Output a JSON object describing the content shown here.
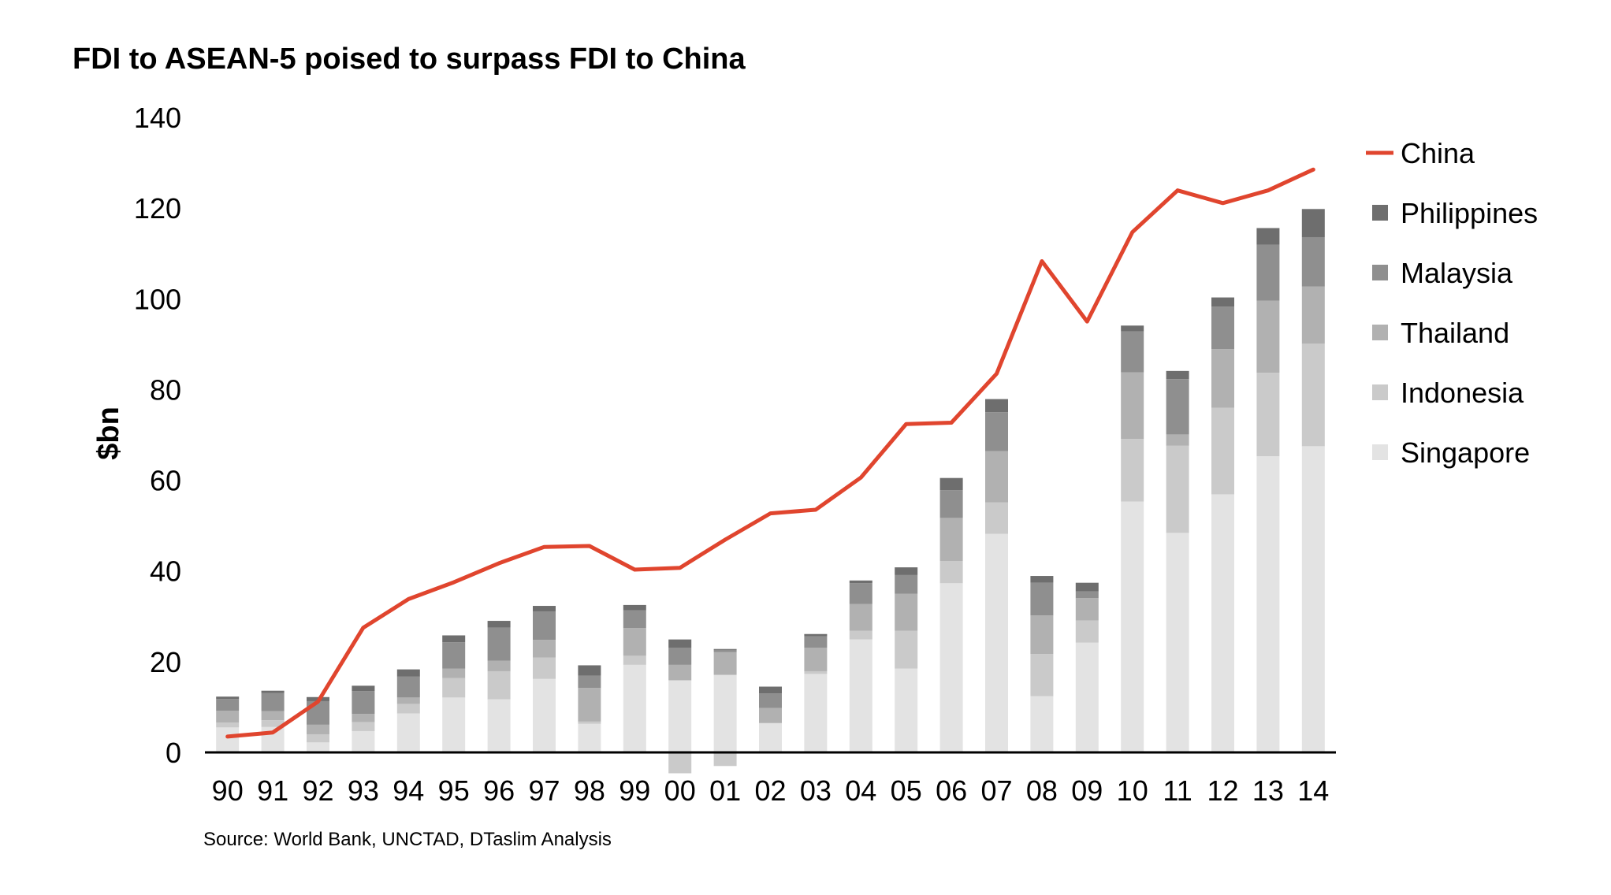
{
  "title": "FDI to ASEAN-5 poised to surpass FDI to China",
  "source": "Source: World Bank, UNCTAD, DTaslim Analysis",
  "colors": {
    "China": "#e0452e",
    "Philippines": "#6e6e6e",
    "Malaysia": "#8f8f8f",
    "Thailand": "#b1b1b1",
    "Indonesia": "#cacaca",
    "Singapore": "#e3e3e3"
  },
  "chart_data": {
    "type": "bar",
    "stacked": true,
    "title": "FDI to ASEAN-5 poised to surpass FDI to China",
    "ylabel": "$bn",
    "xlabel": "",
    "ylim": [
      0,
      140
    ],
    "yticks": [
      0,
      20,
      40,
      60,
      80,
      100,
      120,
      140
    ],
    "grid": false,
    "legend_position": "right",
    "categories": [
      "90",
      "91",
      "92",
      "93",
      "94",
      "95",
      "96",
      "97",
      "98",
      "99",
      "00",
      "01",
      "02",
      "03",
      "04",
      "05",
      "06",
      "07",
      "08",
      "09",
      "10",
      "11",
      "12",
      "13",
      "14"
    ],
    "series": [
      {
        "name": "Singapore",
        "type": "bar",
        "values": [
          5.5,
          5.6,
          2.2,
          4.7,
          8.6,
          12.1,
          11.7,
          16.2,
          6.3,
          19.3,
          15.9,
          17.1,
          6.4,
          17.3,
          24.9,
          18.5,
          37.3,
          48.2,
          12.4,
          24.2,
          55.3,
          48.4,
          56.9,
          65.3,
          67.5
        ]
      },
      {
        "name": "Indonesia",
        "type": "bar",
        "values": [
          1.1,
          1.5,
          1.8,
          2.0,
          2.1,
          4.3,
          6.2,
          4.7,
          0.5,
          2.0,
          -4.6,
          -3.0,
          0.1,
          0.6,
          1.9,
          8.3,
          4.9,
          6.9,
          9.3,
          4.9,
          13.8,
          19.2,
          19.1,
          18.4,
          22.6
        ]
      },
      {
        "name": "Thailand",
        "type": "bar",
        "values": [
          2.6,
          2.0,
          2.1,
          1.8,
          1.4,
          2.1,
          2.3,
          3.9,
          7.4,
          6.1,
          3.4,
          5.0,
          3.3,
          5.2,
          5.9,
          8.2,
          9.5,
          11.3,
          8.5,
          4.9,
          14.7,
          2.5,
          12.9,
          15.9,
          12.6
        ]
      },
      {
        "name": "Malaysia",
        "type": "bar",
        "values": [
          2.6,
          4.0,
          5.2,
          5.0,
          4.6,
          5.8,
          7.3,
          6.3,
          2.7,
          3.9,
          3.8,
          0.5,
          3.2,
          2.5,
          4.6,
          4.1,
          6.1,
          8.6,
          7.2,
          1.5,
          9.0,
          12.2,
          9.4,
          12.3,
          10.9
        ]
      },
      {
        "name": "Philippines",
        "type": "bar",
        "values": [
          0.5,
          0.5,
          0.9,
          1.2,
          1.6,
          1.5,
          1.5,
          1.2,
          2.3,
          1.2,
          1.8,
          0.2,
          1.5,
          0.5,
          0.6,
          1.7,
          2.7,
          2.9,
          1.5,
          1.9,
          1.3,
          1.8,
          2.0,
          3.7,
          6.2
        ]
      },
      {
        "name": "China",
        "type": "line",
        "values": [
          3.5,
          4.4,
          11.2,
          27.5,
          33.8,
          37.5,
          41.7,
          45.3,
          45.5,
          40.3,
          40.7,
          46.9,
          52.7,
          53.5,
          60.6,
          72.4,
          72.7,
          83.5,
          108.3,
          95.0,
          114.7,
          123.9,
          121.1,
          123.9,
          128.5
        ]
      }
    ]
  }
}
